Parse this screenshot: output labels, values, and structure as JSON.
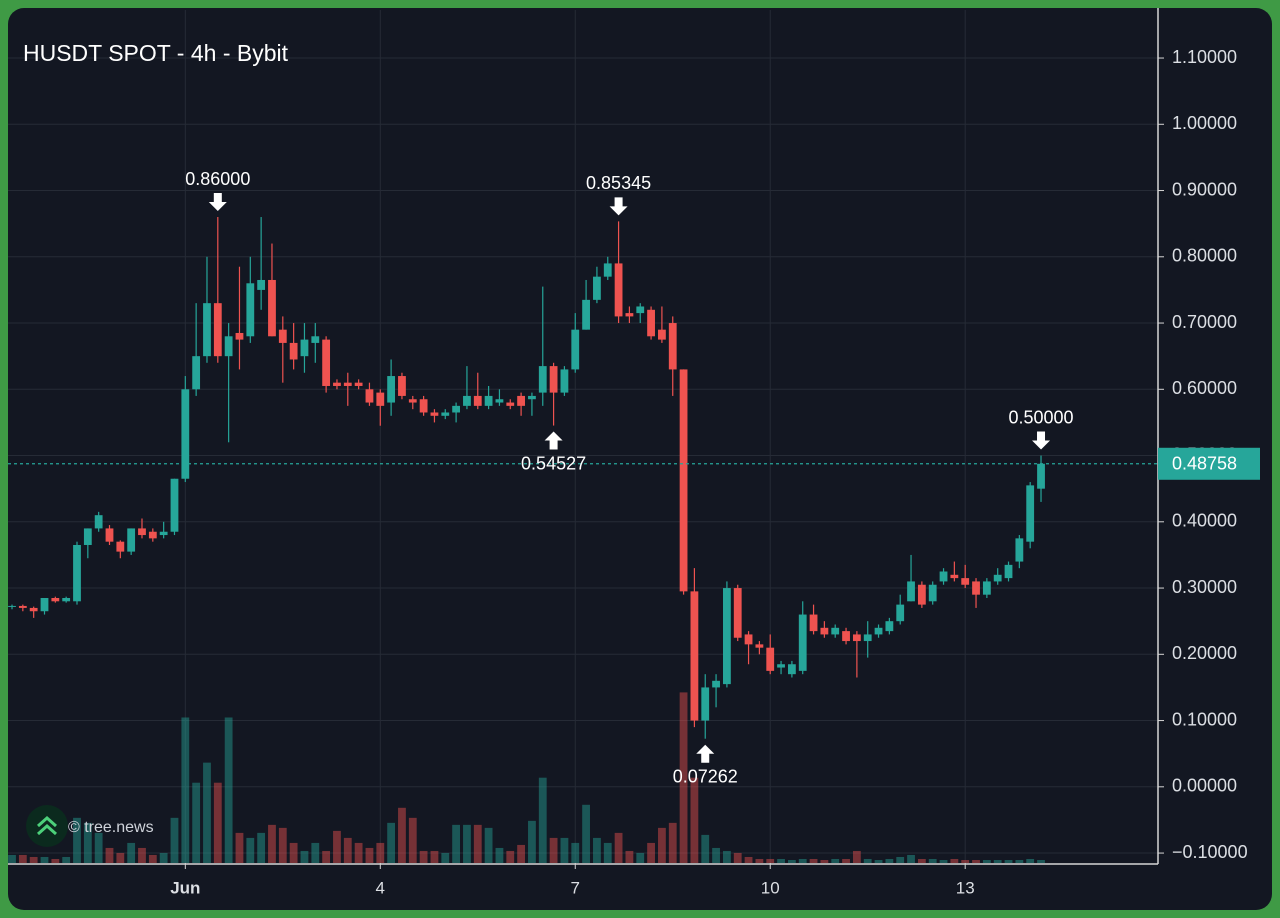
{
  "chart_data": {
    "type": "candlestick",
    "title": "HUSDT SPOT - 4h - Bybit",
    "watermark": "© tree.news",
    "up_color": "#26a69a",
    "down_color": "#ef5350",
    "grid": true,
    "open": [
      0.272,
      0.273,
      0.27,
      0.265,
      0.285,
      0.28,
      0.28,
      0.365,
      0.39,
      0.39,
      0.37,
      0.355,
      0.39,
      0.385,
      0.38,
      0.385,
      0.465,
      0.6,
      0.65,
      0.73,
      0.65,
      0.685,
      0.68,
      0.75,
      0.765,
      0.69,
      0.67,
      0.65,
      0.67,
      0.675,
      0.61,
      0.61,
      0.61,
      0.6,
      0.595,
      0.58,
      0.62,
      0.585,
      0.585,
      0.565,
      0.56,
      0.565,
      0.575,
      0.59,
      0.575,
      0.58,
      0.58,
      0.59,
      0.585,
      0.595,
      0.635,
      0.595,
      0.63,
      0.69,
      0.735,
      0.77,
      0.79,
      0.715,
      0.715,
      0.72,
      0.69,
      0.7,
      0.63,
      0.295,
      0.1,
      0.15,
      0.155,
      0.3,
      0.23,
      0.215,
      0.21,
      0.18,
      0.17,
      0.175,
      0.26,
      0.24,
      0.23,
      0.235,
      0.23,
      0.22,
      0.23,
      0.235,
      0.25,
      0.28,
      0.305,
      0.28,
      0.31,
      0.32,
      0.315,
      0.31,
      0.29,
      0.31,
      0.315,
      0.34,
      0.37,
      0.45
    ],
    "high": [
      0.275,
      0.275,
      0.272,
      0.285,
      0.287,
      0.287,
      0.37,
      0.39,
      0.415,
      0.395,
      0.372,
      0.39,
      0.405,
      0.39,
      0.4,
      0.465,
      0.62,
      0.73,
      0.8,
      0.86,
      0.7,
      0.785,
      0.8,
      0.86,
      0.82,
      0.71,
      0.7,
      0.7,
      0.7,
      0.68,
      0.615,
      0.625,
      0.615,
      0.61,
      0.6,
      0.645,
      0.625,
      0.59,
      0.59,
      0.57,
      0.57,
      0.58,
      0.635,
      0.625,
      0.605,
      0.6,
      0.585,
      0.595,
      0.595,
      0.755,
      0.64,
      0.635,
      0.715,
      0.765,
      0.785,
      0.8,
      0.85345,
      0.725,
      0.73,
      0.725,
      0.725,
      0.71,
      0.63,
      0.33,
      0.17,
      0.17,
      0.31,
      0.305,
      0.235,
      0.22,
      0.23,
      0.19,
      0.19,
      0.28,
      0.275,
      0.25,
      0.245,
      0.24,
      0.235,
      0.25,
      0.245,
      0.255,
      0.29,
      0.35,
      0.31,
      0.31,
      0.33,
      0.34,
      0.335,
      0.315,
      0.315,
      0.33,
      0.34,
      0.38,
      0.46,
      0.5
    ],
    "low": [
      0.268,
      0.265,
      0.255,
      0.26,
      0.278,
      0.278,
      0.275,
      0.345,
      0.385,
      0.365,
      0.345,
      0.35,
      0.375,
      0.37,
      0.375,
      0.38,
      0.46,
      0.59,
      0.64,
      0.64,
      0.52,
      0.63,
      0.67,
      0.72,
      0.68,
      0.61,
      0.63,
      0.625,
      0.64,
      0.595,
      0.6,
      0.575,
      0.6,
      0.575,
      0.545,
      0.56,
      0.585,
      0.57,
      0.56,
      0.55,
      0.555,
      0.55,
      0.57,
      0.57,
      0.57,
      0.575,
      0.57,
      0.56,
      0.56,
      0.575,
      0.54527,
      0.59,
      0.625,
      0.69,
      0.73,
      0.765,
      0.7,
      0.7,
      0.7,
      0.675,
      0.67,
      0.59,
      0.29,
      0.09,
      0.07262,
      0.12,
      0.15,
      0.22,
      0.185,
      0.2,
      0.17,
      0.17,
      0.165,
      0.17,
      0.23,
      0.225,
      0.225,
      0.215,
      0.165,
      0.195,
      0.225,
      0.23,
      0.245,
      0.28,
      0.27,
      0.275,
      0.305,
      0.31,
      0.3,
      0.27,
      0.285,
      0.305,
      0.31,
      0.33,
      0.36,
      0.43
    ],
    "close": [
      0.273,
      0.27,
      0.265,
      0.285,
      0.28,
      0.285,
      0.365,
      0.39,
      0.41,
      0.37,
      0.355,
      0.39,
      0.38,
      0.375,
      0.385,
      0.465,
      0.6,
      0.65,
      0.73,
      0.65,
      0.68,
      0.675,
      0.76,
      0.765,
      0.68,
      0.67,
      0.645,
      0.675,
      0.68,
      0.605,
      0.605,
      0.605,
      0.605,
      0.58,
      0.575,
      0.62,
      0.59,
      0.58,
      0.565,
      0.56,
      0.565,
      0.575,
      0.59,
      0.575,
      0.59,
      0.585,
      0.575,
      0.575,
      0.59,
      0.635,
      0.595,
      0.63,
      0.69,
      0.735,
      0.77,
      0.79,
      0.71,
      0.71,
      0.725,
      0.68,
      0.675,
      0.63,
      0.295,
      0.1,
      0.15,
      0.16,
      0.3,
      0.225,
      0.215,
      0.21,
      0.175,
      0.185,
      0.185,
      0.26,
      0.235,
      0.23,
      0.24,
      0.22,
      0.22,
      0.23,
      0.24,
      0.25,
      0.275,
      0.31,
      0.275,
      0.305,
      0.325,
      0.315,
      0.305,
      0.29,
      0.31,
      0.32,
      0.335,
      0.375,
      0.455,
      0.48758
    ],
    "volume": [
      8,
      8,
      6,
      6,
      4,
      6,
      45,
      40,
      30,
      15,
      10,
      20,
      15,
      8,
      10,
      45,
      145,
      80,
      100,
      80,
      145,
      30,
      25,
      30,
      38,
      35,
      20,
      12,
      20,
      12,
      32,
      25,
      20,
      15,
      20,
      40,
      55,
      45,
      12,
      12,
      10,
      38,
      38,
      38,
      35,
      15,
      12,
      18,
      42,
      85,
      25,
      25,
      20,
      58,
      25,
      20,
      30,
      12,
      10,
      20,
      35,
      40,
      170,
      85,
      28,
      15,
      12,
      10,
      6,
      4,
      4,
      4,
      3,
      4,
      4,
      3,
      4,
      4,
      12,
      4,
      3,
      4,
      6,
      8,
      4,
      4,
      3,
      4,
      3,
      3,
      3,
      3,
      3,
      3,
      4,
      3
    ],
    "volume_lim": [
      0,
      850
    ],
    "xlim": [
      -0.37,
      105.8
    ],
    "xticks": [
      {
        "value": 16,
        "label": "Jun"
      },
      {
        "value": 34,
        "label": "4"
      },
      {
        "value": 52,
        "label": "7"
      },
      {
        "value": 70,
        "label": "10"
      },
      {
        "value": 88,
        "label": "13"
      }
    ],
    "ylim": [
      -0.115,
      1.1725
    ],
    "yticks": [
      {
        "value": -0.1,
        "label": "−0.10000"
      },
      {
        "value": 0,
        "label": "0.00000"
      },
      {
        "value": 0.1,
        "label": "0.10000"
      },
      {
        "value": 0.2,
        "label": "0.20000"
      },
      {
        "value": 0.3,
        "label": "0.30000"
      },
      {
        "value": 0.4,
        "label": "0.40000"
      },
      {
        "value": 0.5,
        "label": "0.50000"
      },
      {
        "value": 0.6,
        "label": "0.60000"
      },
      {
        "value": 0.7,
        "label": "0.70000"
      },
      {
        "value": 0.8,
        "label": "0.80000"
      },
      {
        "value": 0.9,
        "label": "0.90000"
      },
      {
        "value": 1,
        "label": "1.00000"
      },
      {
        "value": 1.1,
        "label": "1.10000"
      }
    ],
    "last_price": {
      "value": 0.48758,
      "label": "0.48758"
    },
    "annotations": [
      {
        "x": 19,
        "value": 0.86,
        "label": "0.86000",
        "position": "above"
      },
      {
        "x": 50,
        "value": 0.54527,
        "label": "0.54527",
        "position": "below"
      },
      {
        "x": 56,
        "value": 0.85345,
        "label": "0.85345",
        "position": "above"
      },
      {
        "x": 64,
        "value": 0.07262,
        "label": "0.07262",
        "position": "below"
      },
      {
        "x": 95,
        "value": 0.5,
        "label": "0.50000",
        "position": "above"
      }
    ]
  }
}
